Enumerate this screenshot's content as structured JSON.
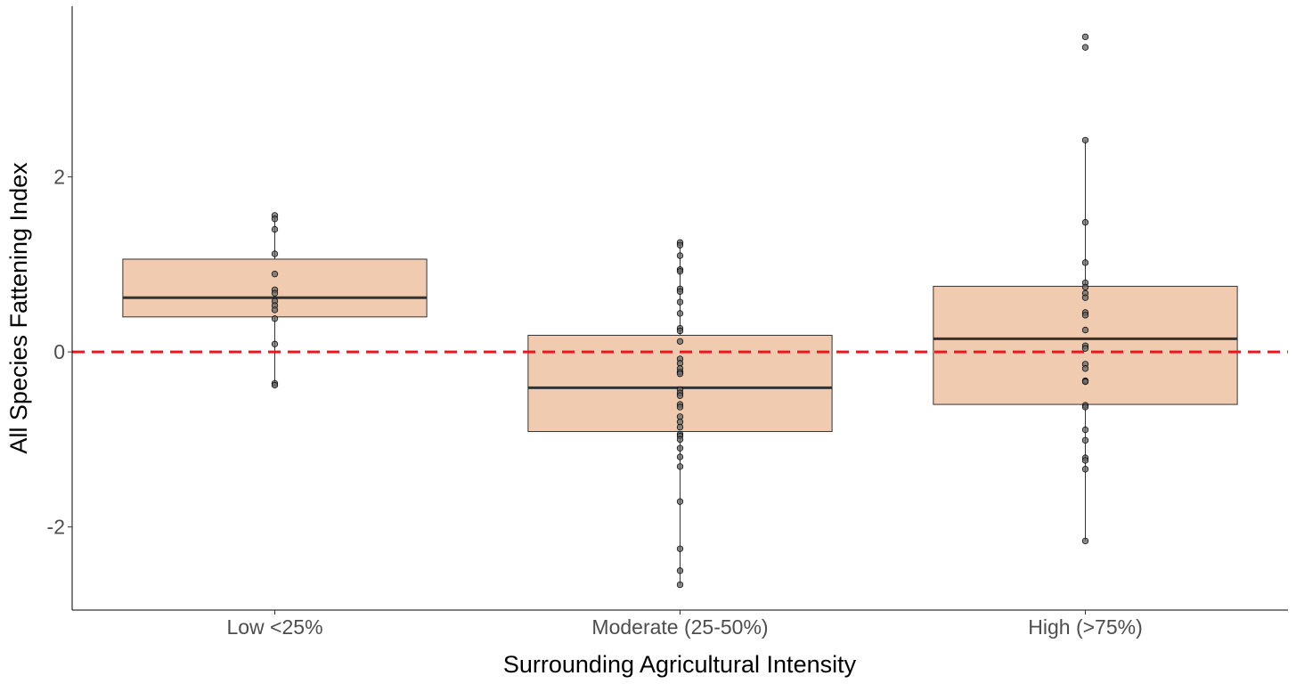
{
  "chart_data": {
    "type": "box",
    "title": "",
    "xlabel": "Surrounding Agricultural Intensity",
    "ylabel": "All Species Fattening Index",
    "ylim": [
      -2.95,
      3.95
    ],
    "yticks": [
      -2,
      0,
      2
    ],
    "ytick_labels": [
      "-2",
      "0",
      "2"
    ],
    "grid": false,
    "legend": "none",
    "reference_line": {
      "y": 0,
      "color": "#e41a1c",
      "style": "dashed"
    },
    "colors": {
      "box_fill": "#f0cbb0",
      "box_edge": "#333333",
      "median": "#333333",
      "point_fill": "#666666"
    },
    "categories": [
      "Low <25%",
      "Moderate (25-50%)",
      "High (>75%)"
    ],
    "boxes": [
      {
        "category": "Low <25%",
        "q1": 0.4,
        "median": 0.62,
        "q3": 1.06,
        "whisker_low": -0.38,
        "whisker_high": 1.56,
        "points": [
          1.56,
          1.52,
          1.4,
          1.12,
          0.89,
          0.71,
          0.67,
          0.58,
          0.53,
          0.48,
          0.38,
          0.09,
          -0.36,
          -0.38
        ]
      },
      {
        "category": "Moderate (25-50%)",
        "q1": -0.91,
        "median": -0.41,
        "q3": 0.19,
        "whisker_low": -2.66,
        "whisker_high": 1.25,
        "points": [
          1.25,
          1.22,
          1.1,
          0.94,
          0.92,
          0.72,
          0.69,
          0.57,
          0.44,
          0.27,
          0.24,
          0.12,
          -0.08,
          -0.13,
          -0.19,
          -0.23,
          -0.25,
          -0.43,
          -0.47,
          -0.5,
          -0.6,
          -0.63,
          -0.74,
          -0.8,
          -0.86,
          -0.94,
          -0.96,
          -1.0,
          -1.1,
          -1.2,
          -1.31,
          -1.71,
          -2.25,
          -2.5,
          -2.66
        ]
      },
      {
        "category": "High (>75%)",
        "q1": -0.6,
        "median": 0.15,
        "q3": 0.75,
        "whisker_low": -2.16,
        "whisker_high": 2.42,
        "points": [
          3.6,
          3.48,
          2.42,
          1.48,
          1.02,
          0.79,
          0.74,
          0.67,
          0.62,
          0.45,
          0.42,
          0.25,
          0.07,
          0.04,
          -0.14,
          -0.19,
          -0.33,
          -0.34,
          -0.61,
          -0.63,
          -0.89,
          -1.01,
          -1.21,
          -1.24,
          -1.34,
          -2.16
        ]
      }
    ]
  }
}
